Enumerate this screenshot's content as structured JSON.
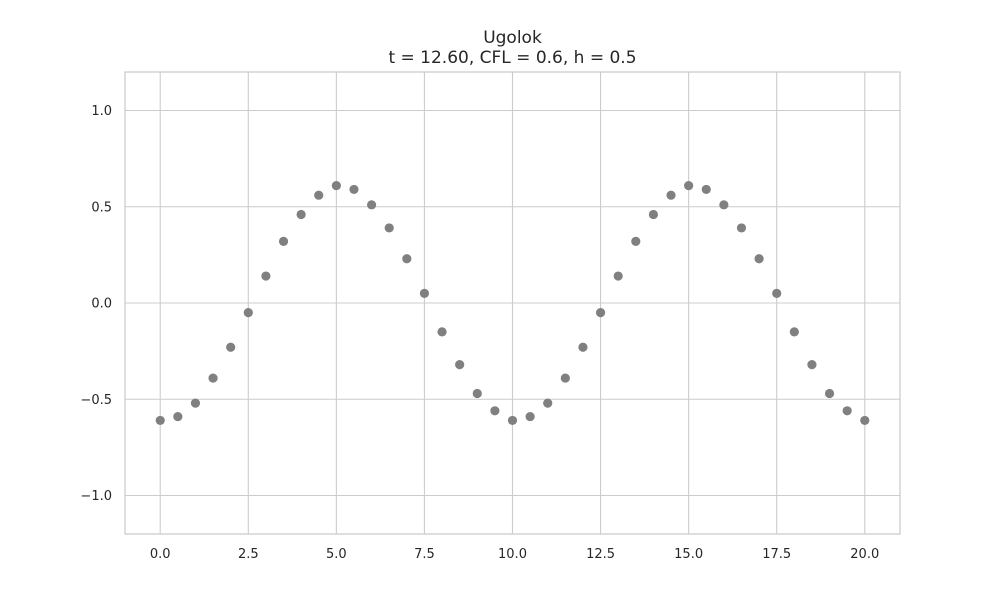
{
  "chart_data": {
    "type": "scatter",
    "title": "Ugolok",
    "subtitle": "t = 12.60, CFL = 0.6, h = 0.5",
    "xlabel": "",
    "ylabel": "",
    "xlim": [
      -1.0,
      21.0
    ],
    "ylim": [
      -1.2,
      1.2
    ],
    "xticks": [
      0.0,
      2.5,
      5.0,
      7.5,
      10.0,
      12.5,
      15.0,
      17.5,
      20.0
    ],
    "xtick_labels": [
      "0.0",
      "2.5",
      "5.0",
      "7.5",
      "10.0",
      "12.5",
      "15.0",
      "17.5",
      "20.0"
    ],
    "yticks": [
      -1.0,
      -0.5,
      0.0,
      0.5,
      1.0
    ],
    "ytick_labels": [
      "−1.0",
      "−0.5",
      "0.0",
      "0.5",
      "1.0"
    ],
    "grid": true,
    "marker_color": "#808080",
    "series": [
      {
        "x": [
          0.0,
          0.5,
          1.0,
          1.5,
          2.0,
          2.5,
          3.0,
          3.5,
          4.0,
          4.5,
          5.0,
          5.5,
          6.0,
          6.5,
          7.0,
          7.5,
          8.0,
          8.5,
          9.0,
          9.5,
          10.0,
          10.5,
          11.0,
          11.5,
          12.0,
          12.5,
          13.0,
          13.5,
          14.0,
          14.5,
          15.0,
          15.5,
          16.0,
          16.5,
          17.0,
          17.5,
          18.0,
          18.5,
          19.0,
          19.5,
          20.0
        ],
        "y": [
          -0.61,
          -0.59,
          -0.52,
          -0.39,
          -0.23,
          -0.05,
          0.14,
          0.32,
          0.46,
          0.56,
          0.61,
          0.59,
          0.51,
          0.39,
          0.23,
          0.05,
          -0.15,
          -0.32,
          -0.47,
          -0.56,
          -0.61,
          -0.59,
          -0.52,
          -0.39,
          -0.23,
          -0.05,
          0.14,
          0.32,
          0.46,
          0.56,
          0.61,
          0.59,
          0.51,
          0.39,
          0.23,
          0.05,
          -0.15,
          -0.32,
          -0.47,
          -0.56,
          -0.61
        ]
      }
    ]
  }
}
